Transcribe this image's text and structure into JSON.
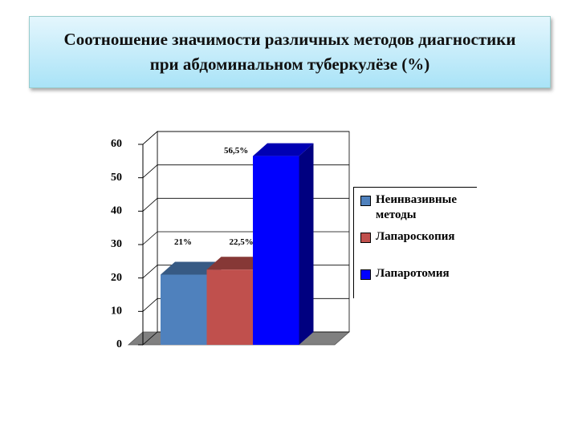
{
  "chart_data": {
    "type": "bar3d",
    "title": "Соотношение значимости различных методов диагностики при абдоминальном туберкулёзе (%)",
    "series": [
      {
        "name": "Неинвазивные методы",
        "color": "#4f81bd",
        "values": [
          21
        ],
        "value_labels": [
          "21%"
        ]
      },
      {
        "name": "Лапароскопия",
        "color": "#c0504d",
        "values": [
          22.5
        ],
        "value_labels": [
          "22,5%"
        ]
      },
      {
        "name": "Лапаротомия",
        "color": "#0000ff",
        "values": [
          56.5
        ],
        "value_labels": [
          "56,5%"
        ]
      }
    ],
    "ylim": [
      0,
      60
    ],
    "yticks": [
      0,
      10,
      20,
      30,
      40,
      50,
      60
    ],
    "grid": true,
    "legend": "right"
  }
}
